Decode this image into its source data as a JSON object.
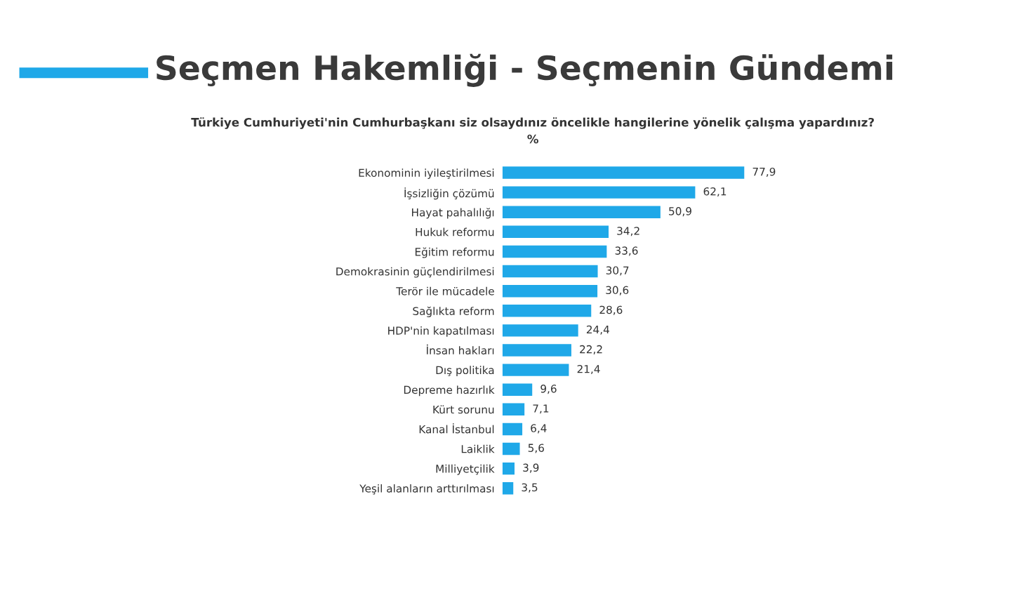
{
  "chart_data": {
    "type": "bar",
    "orientation": "horizontal",
    "title": "Seçmen Hakemliği - Seçmenin Gündemi",
    "subtitle": "Türkiye Cumhuriyeti'nin Cumhurbaşkanı siz olsaydınız öncelikle hangilerine yönelik çalışma yapardınız?\n%",
    "categories": [
      "Ekonominin iyileştirilmesi",
      "İşsizliğin çözümü",
      "Hayat pahalılığı",
      "Hukuk reformu",
      "Eğitim reformu",
      "Demokrasinin güçlendirilmesi",
      "Terör ile mücadele",
      "Sağlıkta reform",
      "HDP'nin kapatılması",
      "İnsan hakları",
      "Dış politika",
      "Depreme hazırlık",
      "Kürt sorunu",
      "Kanal İstanbul",
      "Laiklik",
      "Milliyetçilik",
      "Yeşil alanların arttırılması"
    ],
    "values": [
      77.9,
      62.1,
      50.9,
      34.2,
      33.6,
      30.7,
      30.6,
      28.6,
      24.4,
      22.2,
      21.4,
      9.6,
      7.1,
      6.4,
      5.6,
      3.9,
      3.5
    ],
    "value_labels": [
      "77,9",
      "62,1",
      "50,9",
      "34,2",
      "33,6",
      "30,7",
      "30,6",
      "28,6",
      "24,4",
      "22,2",
      "21,4",
      "9,6",
      "7,1",
      "6,4",
      "5,6",
      "3,9",
      "3,5"
    ],
    "color": "#1fa8e8",
    "grid": false,
    "legend": false
  }
}
